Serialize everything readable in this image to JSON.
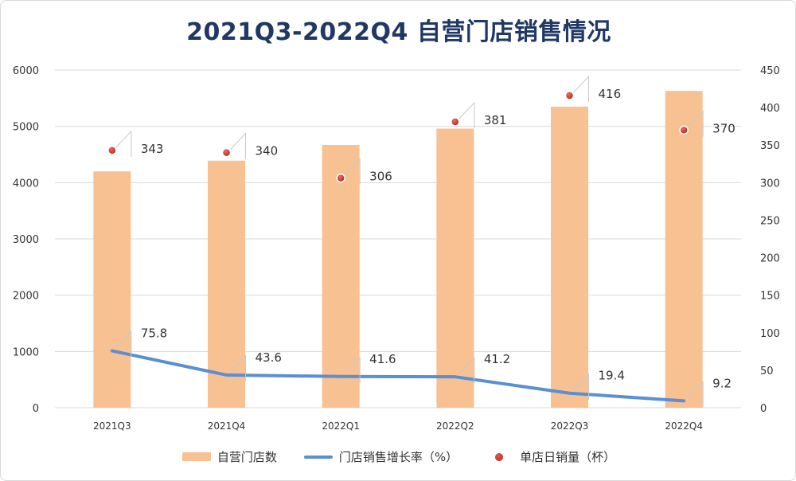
{
  "chart_data": {
    "type": "bar",
    "title": "2021Q3-2022Q4 自营门店销售情况",
    "categories": [
      "2021Q3",
      "2021Q4",
      "2022Q1",
      "2022Q2",
      "2022Q3",
      "2022Q4"
    ],
    "left_axis": {
      "min": 0,
      "max": 6000,
      "ticks": [
        "0",
        "1000",
        "2000",
        "3000",
        "4000",
        "5000",
        "6000"
      ]
    },
    "right_axis": {
      "min": 0,
      "max": 450,
      "ticks": [
        "0",
        "50",
        "100",
        "150",
        "200",
        "250",
        "300",
        "350",
        "400",
        "450"
      ]
    },
    "series": [
      {
        "name": "自营门店数",
        "type": "bar",
        "axis": "left",
        "color": "#f8c192",
        "values": [
          4200,
          4390,
          4670,
          4960,
          5350,
          5630
        ]
      },
      {
        "name": "门店销售增长率（%）",
        "type": "line",
        "axis": "right",
        "color": "#5b8fd1",
        "values": [
          75.8,
          43.6,
          41.6,
          41.2,
          19.4,
          9.2
        ],
        "labels": [
          "75.8",
          "43.6",
          "41.6",
          "41.2",
          "19.4",
          "9.2"
        ]
      },
      {
        "name": "单店日销量（杯）",
        "type": "scatter",
        "axis": "right",
        "color": "#c0392b",
        "values": [
          343,
          340,
          306,
          381,
          416,
          370
        ],
        "labels": [
          "343",
          "340",
          "306",
          "381",
          "416",
          "370"
        ]
      }
    ],
    "grid": true,
    "legend_position": "bottom"
  }
}
